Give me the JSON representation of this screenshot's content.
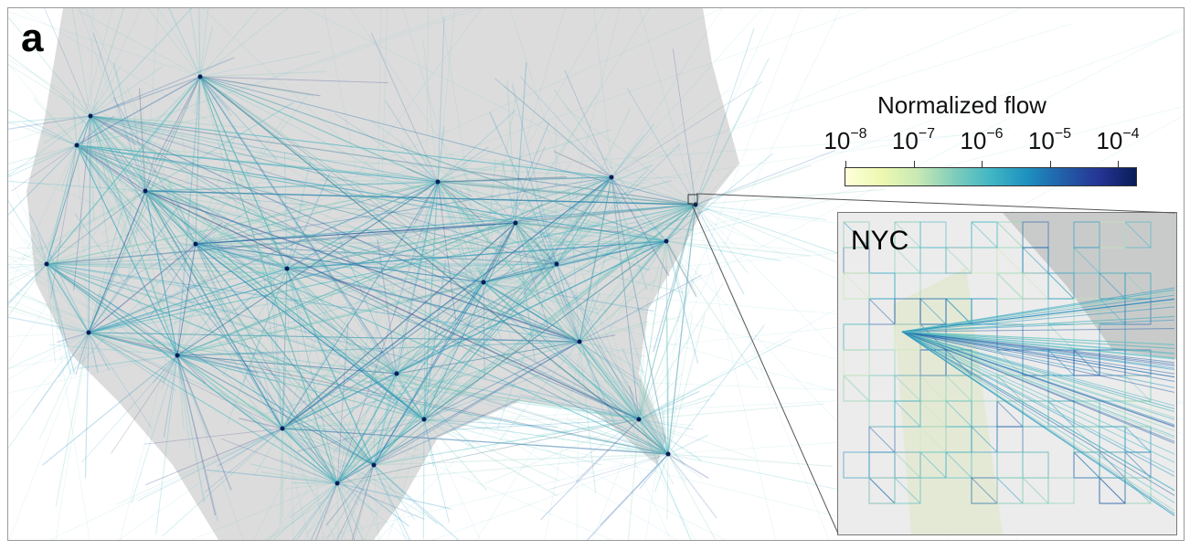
{
  "panel_label": "a",
  "colorbar": {
    "title": "Normalized flow",
    "ticks": [
      {
        "base": "10",
        "exp": "−8"
      },
      {
        "base": "10",
        "exp": "−7"
      },
      {
        "base": "10",
        "exp": "−6"
      },
      {
        "base": "10",
        "exp": "−5"
      },
      {
        "base": "10",
        "exp": "−4"
      }
    ],
    "colors": [
      "#ffffd9",
      "#edf8b1",
      "#c7e9b4",
      "#7fcdbb",
      "#41b6c4",
      "#1d91c0",
      "#225ea8",
      "#253494",
      "#081d58"
    ]
  },
  "inset": {
    "label": "NYC"
  },
  "colors": {
    "land": "#dcdcdc",
    "ocean": "#ffffff",
    "frame": "#999999"
  }
}
